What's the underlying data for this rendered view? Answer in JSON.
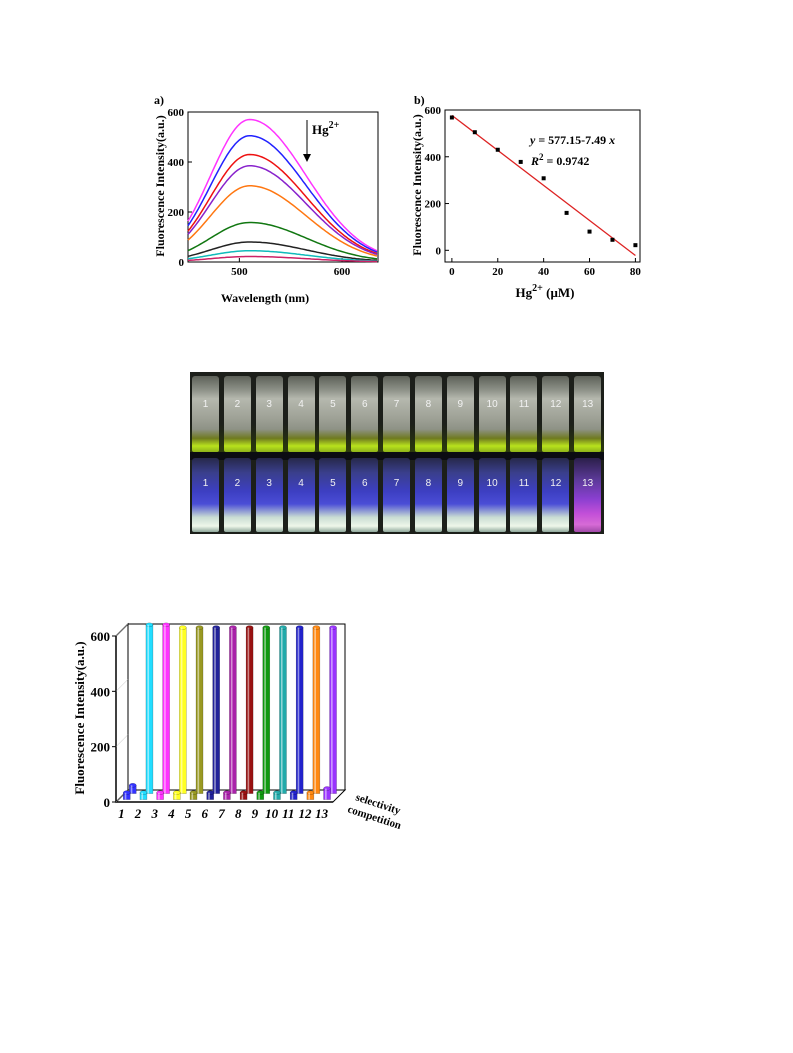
{
  "chart_data": [
    {
      "type": "line",
      "panel_label": "a)",
      "xlabel": "Wavelength (nm)",
      "ylabel": "Fluorescence Intensity(a.u.)",
      "xlim": [
        450,
        635
      ],
      "ylim": [
        0,
        600
      ],
      "xticks": [
        500,
        600
      ],
      "yticks": [
        0,
        200,
        400,
        600
      ],
      "annotation": {
        "text": "Hg",
        "sup": "2+"
      },
      "peak_x": 510,
      "series": [
        {
          "peak": 570,
          "color": "#ff33ff"
        },
        {
          "peak": 505,
          "color": "#2222ff"
        },
        {
          "peak": 430,
          "color": "#ee1111"
        },
        {
          "peak": 385,
          "color": "#8822cc"
        },
        {
          "peak": 305,
          "color": "#ff7711"
        },
        {
          "peak": 158,
          "color": "#117711"
        },
        {
          "peak": 80,
          "color": "#222222"
        },
        {
          "peak": 45,
          "color": "#11bbbb"
        },
        {
          "peak": 22,
          "color": "#cc2266"
        }
      ]
    },
    {
      "type": "scatter",
      "panel_label": "b)",
      "xlabel": {
        "text": "Hg",
        "sup": "2+",
        "rest": " (μM)"
      },
      "ylabel": "Fluorescence Intensity(a.u.)",
      "xlim": [
        -3,
        82
      ],
      "ylim": [
        -50,
        600
      ],
      "xticks": [
        0,
        20,
        40,
        60,
        80
      ],
      "yticks": [
        0,
        200,
        400,
        600
      ],
      "equation": {
        "lhs": "y",
        "rhs": " = 577.15-7.49 ",
        "var": "x"
      },
      "r2": {
        "lhs": "R",
        "sup": "2",
        "rhs": " = 0.9742"
      },
      "fit": {
        "intercept": 577.15,
        "slope": -7.49,
        "x_range": [
          0,
          80
        ]
      },
      "x": [
        0,
        10,
        20,
        30,
        40,
        50,
        60,
        70,
        80
      ],
      "y": [
        568,
        505,
        430,
        378,
        308,
        160,
        80,
        45,
        22
      ],
      "fit_color": "#dd2222"
    },
    {
      "type": "bar",
      "ylabel": "Fluorescence Intensity(a.u.)",
      "ylim": [
        0,
        600
      ],
      "yticks": [
        0,
        200,
        400,
        600
      ],
      "categories": [
        "1",
        "2",
        "3",
        "4",
        "5",
        "6",
        "7",
        "8",
        "9",
        "10",
        "11",
        "12",
        "13"
      ],
      "series": [
        {
          "name": "selectivity",
          "values": [
            30,
            610,
            610,
            600,
            600,
            600,
            600,
            600,
            600,
            600,
            600,
            600,
            600
          ]
        },
        {
          "name": "competition",
          "values": [
            25,
            25,
            25,
            25,
            25,
            25,
            25,
            25,
            25,
            25,
            25,
            25,
            40
          ]
        }
      ],
      "colors": [
        "#3333ff",
        "#22ddff",
        "#ff33ff",
        "#ffff22",
        "#999922",
        "#222299",
        "#aa22aa",
        "#991111",
        "#119911",
        "#22aaaa",
        "#2222cc",
        "#ff8811",
        "#9933ff"
      ]
    }
  ],
  "photo": {
    "vial_labels_top": [
      "1",
      "2",
      "3",
      "4",
      "5",
      "6",
      "7",
      "8",
      "9",
      "10",
      "11",
      "12",
      "13"
    ],
    "vial_labels_bottom": [
      "1",
      "2",
      "3",
      "4",
      "5",
      "6",
      "7",
      "8",
      "9",
      "10",
      "11",
      "12",
      "13"
    ]
  }
}
